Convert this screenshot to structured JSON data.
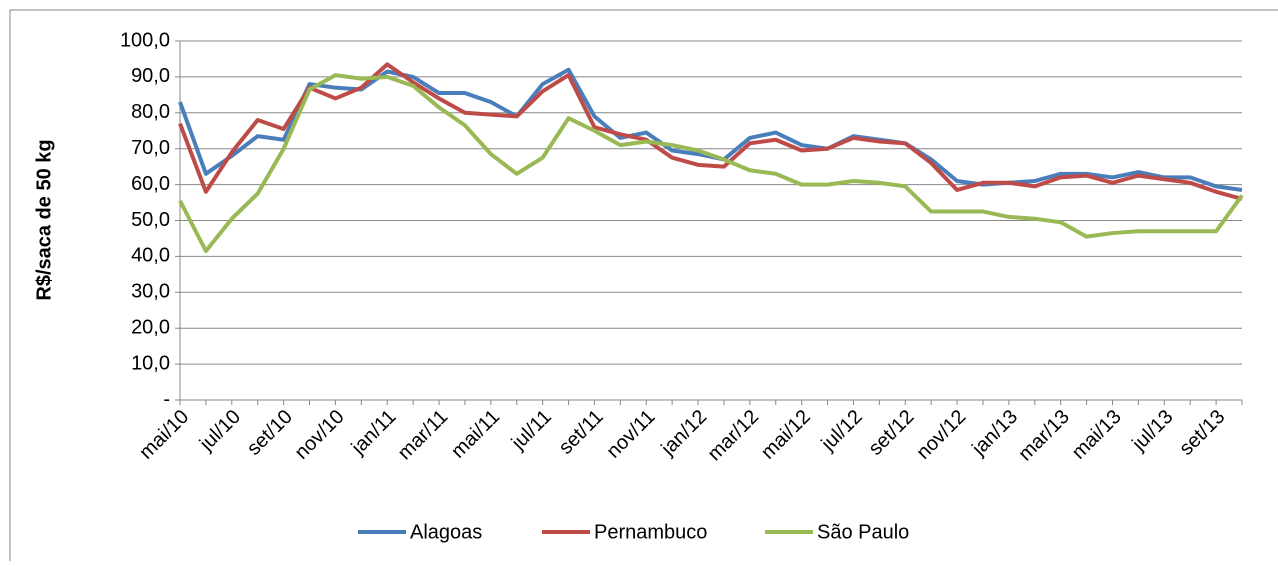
{
  "chart_data": {
    "type": "line",
    "y_label": "R$/saca de 50 kg",
    "categories": [
      "mai/10",
      null,
      "jul/10",
      null,
      "set/10",
      null,
      "nov/10",
      null,
      "jan/11",
      null,
      "mar/11",
      null,
      "mai/11",
      null,
      "jul/11",
      null,
      "set/11",
      null,
      "nov/11",
      null,
      "jan/12",
      null,
      "mar/12",
      null,
      "mai/12",
      null,
      "jul/12",
      null,
      "set/12",
      null,
      "nov/12",
      null,
      "jan/13",
      null,
      "mar/13",
      null,
      "mai/13",
      null,
      "jul/13",
      null,
      "set/13",
      null
    ],
    "series": [
      {
        "name": "Alagoas",
        "color": "#4a7ebb",
        "values": [
          83,
          63,
          68,
          73.5,
          72.5,
          88,
          87,
          86.5,
          91.5,
          90,
          85.5,
          85.5,
          83,
          79,
          88,
          92,
          79,
          73,
          74.5,
          69.5,
          68.5,
          67,
          73,
          74.5,
          71,
          70,
          73.5,
          72.5,
          71.5,
          67,
          61,
          60,
          60.5,
          61,
          63,
          63,
          62,
          63.5,
          62,
          62,
          59.5,
          58.5
        ]
      },
      {
        "name": "Pernambuco",
        "color": "#be4b48",
        "values": [
          77,
          58,
          69,
          78,
          75.5,
          87,
          84,
          87,
          93.5,
          88.5,
          84,
          80,
          79.5,
          79,
          86,
          90.5,
          76,
          74,
          72.5,
          67.5,
          65.5,
          65,
          71.5,
          72.5,
          69.5,
          70,
          73,
          72,
          71.5,
          66,
          58.5,
          60.5,
          60.5,
          59.5,
          62,
          62.5,
          60.5,
          62.5,
          61.5,
          60.5,
          58,
          56
        ]
      },
      {
        "name": "São Paulo",
        "color": "#98b954",
        "values": [
          55.5,
          41.5,
          50.5,
          57.5,
          70,
          86.5,
          90.5,
          89.5,
          90,
          87.5,
          81.5,
          76.5,
          68.5,
          63,
          67.5,
          78.5,
          75,
          71,
          72,
          71,
          69.5,
          67,
          64,
          63,
          60,
          60,
          61,
          60.5,
          59.5,
          52.5,
          52.5,
          52.5,
          51,
          50.5,
          49.5,
          45.5,
          46.5,
          47,
          47,
          47,
          47,
          57
        ]
      }
    ],
    "ylim": [
      0,
      100
    ],
    "yticks": [
      {
        "value": 0,
        "label": "-"
      },
      {
        "value": 10,
        "label": "10,0"
      },
      {
        "value": 20,
        "label": "20,0"
      },
      {
        "value": 30,
        "label": "30,0"
      },
      {
        "value": 40,
        "label": "40,0"
      },
      {
        "value": 50,
        "label": "50,0"
      },
      {
        "value": 60,
        "label": "60,0"
      },
      {
        "value": 70,
        "label": "70,0"
      },
      {
        "value": 80,
        "label": "80,0"
      },
      {
        "value": 90,
        "label": "90,0"
      },
      {
        "value": 100,
        "label": "100,0"
      }
    ],
    "grid": true,
    "legend": "bottom"
  }
}
